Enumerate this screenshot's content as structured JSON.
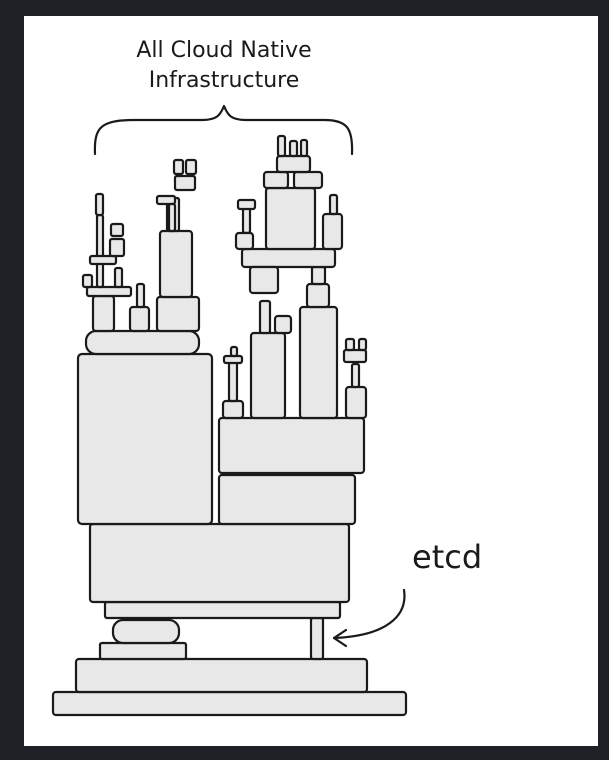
{
  "diagram": {
    "top_label_line1": "All Cloud Native",
    "top_label_line2": "Infrastructure",
    "etcd_label": "etcd"
  },
  "colors": {
    "page_background": "#1e2226",
    "panel_background": "#ffffff",
    "block_fill": "#e8e8e8",
    "ink": "#1a1a1a"
  }
}
